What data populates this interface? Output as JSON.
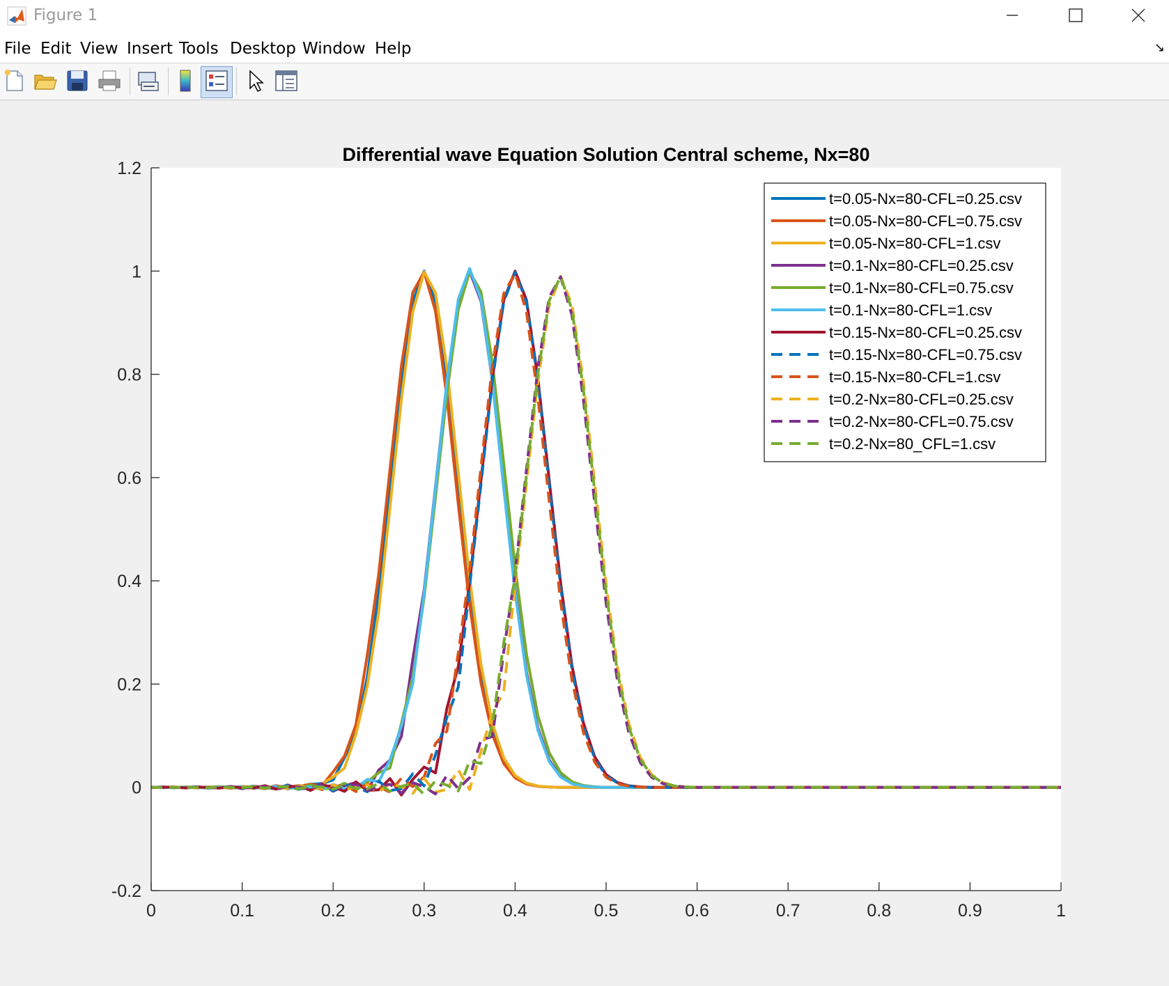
{
  "window": {
    "title": "Figure 1"
  },
  "menu": [
    "File",
    "Edit",
    "View",
    "Insert",
    "Tools",
    "Desktop",
    "Window",
    "Help"
  ],
  "toolbar": {
    "icons": [
      "new-figure-icon",
      "open-file-icon",
      "save-icon",
      "print-icon",
      "link-plot-icon",
      "insert-colorbar-icon",
      "insert-legend-icon",
      "edit-plot-icon",
      "property-inspector-icon"
    ],
    "active": "insert-legend-icon"
  },
  "chart_data": {
    "type": "line",
    "title": "Differential wave Equation Solution Central scheme, Nx=80",
    "xlim": [
      0,
      1
    ],
    "ylim": [
      -0.2,
      1.2
    ],
    "xticks": [
      "0",
      "0.1",
      "0.2",
      "0.3",
      "0.4",
      "0.5",
      "0.6",
      "0.7",
      "0.8",
      "0.9",
      "1"
    ],
    "yticks": [
      "1.2",
      "1",
      "0.8",
      "0.6",
      "0.4",
      "0.2",
      "0",
      "-0.2"
    ],
    "legend_position": "top-right",
    "series": [
      {
        "name": "t=0.05-Nx=80-CFL=0.25.csv",
        "color": "#0072BD",
        "style": "solid",
        "center": 0.3,
        "amp": 1.0,
        "width": 0.0505,
        "osc": 0.008
      },
      {
        "name": "t=0.05-Nx=80-CFL=0.75.csv",
        "color": "#D95319",
        "style": "solid",
        "center": 0.298,
        "amp": 1.0,
        "width": 0.051,
        "osc": 0.008
      },
      {
        "name": "t=0.05-Nx=80-CFL=1.csv",
        "color": "#EDB120",
        "style": "solid",
        "center": 0.302,
        "amp": 1.0,
        "width": 0.0505,
        "osc": 0.006
      },
      {
        "name": "t=0.1-Nx=80-CFL=0.25.csv",
        "color": "#7E2F8E",
        "style": "solid",
        "center": 0.35,
        "amp": 1.0,
        "width": 0.051,
        "osc": 0.018
      },
      {
        "name": "t=0.1-Nx=80-CFL=0.75.csv",
        "color": "#77AC30",
        "style": "solid",
        "center": 0.352,
        "amp": 1.0,
        "width": 0.052,
        "osc": 0.014
      },
      {
        "name": "t=0.1-Nx=80-CFL=1.csv",
        "color": "#4DBEEE",
        "style": "solid",
        "center": 0.35,
        "amp": 1.005,
        "width": 0.0505,
        "osc": 0.012
      },
      {
        "name": "t=0.15-Nx=80-CFL=0.25.csv",
        "color": "#A2142F",
        "style": "solid",
        "center": 0.4,
        "amp": 1.0,
        "width": 0.052,
        "osc": 0.03
      },
      {
        "name": "t=0.15-Nx=80-CFL=0.75.csv",
        "color": "#0072BD",
        "style": "dashed",
        "center": 0.4,
        "amp": 0.998,
        "width": 0.0515,
        "osc": 0.025
      },
      {
        "name": "t=0.15-Nx=80-CFL=1.csv",
        "color": "#D95319",
        "style": "dashed",
        "center": 0.398,
        "amp": 0.997,
        "width": 0.0515,
        "osc": 0.022
      },
      {
        "name": "t=0.2-Nx=80-CFL=0.25.csv",
        "color": "#EDB120",
        "style": "dashed",
        "center": 0.45,
        "amp": 0.99,
        "width": 0.052,
        "osc": 0.035
      },
      {
        "name": "t=0.2-Nx=80-CFL=0.75.csv",
        "color": "#7E2F8E",
        "style": "dashed",
        "center": 0.448,
        "amp": 0.99,
        "width": 0.0515,
        "osc": 0.03
      },
      {
        "name": "t=0.2-Nx=80_CFL=1.csv",
        "color": "#77AC30",
        "style": "dashed",
        "center": 0.449,
        "amp": 0.99,
        "width": 0.052,
        "osc": 0.028
      }
    ]
  }
}
